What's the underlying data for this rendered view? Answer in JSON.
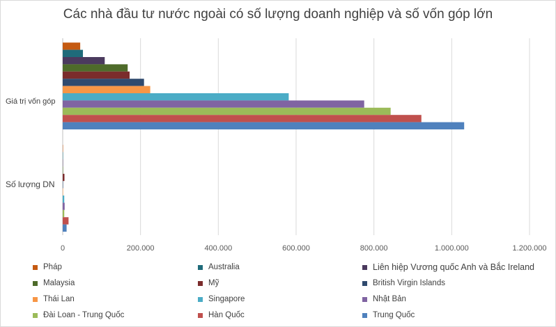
{
  "chart_data": {
    "type": "bar",
    "orientation": "horizontal",
    "title": "Các nhà đầu tư nước ngoài có số lượng doanh nghiệp và số vốn góp lớn",
    "categories": [
      "Giá trị vốn góp",
      "Số lượng DN"
    ],
    "xlim": [
      0,
      1200000
    ],
    "x_ticks": [
      0,
      200000,
      400000,
      600000,
      800000,
      1000000,
      1200000
    ],
    "x_tick_labels": [
      "0",
      "200.000",
      "400.000",
      "600.000",
      "800.000",
      "1.000.000",
      "1.200.000"
    ],
    "grid": true,
    "legend_position": "bottom",
    "series": [
      {
        "name": "Pháp",
        "color": "#c55a11",
        "values": [
          45000,
          500
        ]
      },
      {
        "name": "Australia",
        "color": "#1f6b7a",
        "values": [
          52000,
          500
        ]
      },
      {
        "name": "Liên hiệp Vương quốc Anh và Bắc Ireland",
        "color": "#4b3a5e",
        "values": [
          108000,
          500
        ]
      },
      {
        "name": "Malaysia",
        "color": "#4e6b2a",
        "values": [
          167000,
          1000
        ]
      },
      {
        "name": "Mỹ",
        "color": "#7b2c2c",
        "values": [
          172000,
          4500
        ]
      },
      {
        "name": "British Virgin Islands",
        "color": "#2f4a6e",
        "values": [
          209000,
          1000
        ]
      },
      {
        "name": "Thái Lan",
        "color": "#f79646",
        "values": [
          225000,
          1000
        ]
      },
      {
        "name": "Singapore",
        "color": "#4bacc6",
        "values": [
          581000,
          4000
        ]
      },
      {
        "name": "Nhật Bản",
        "color": "#8064a2",
        "values": [
          775000,
          5000
        ]
      },
      {
        "name": "Đài Loan - Trung Quốc",
        "color": "#9bbb59",
        "values": [
          843000,
          4000
        ]
      },
      {
        "name": "Hàn Quốc",
        "color": "#c0504d",
        "values": [
          922000,
          15000
        ]
      },
      {
        "name": "Trung Quốc",
        "color": "#4f81bd",
        "values": [
          1032000,
          10000
        ]
      }
    ]
  }
}
